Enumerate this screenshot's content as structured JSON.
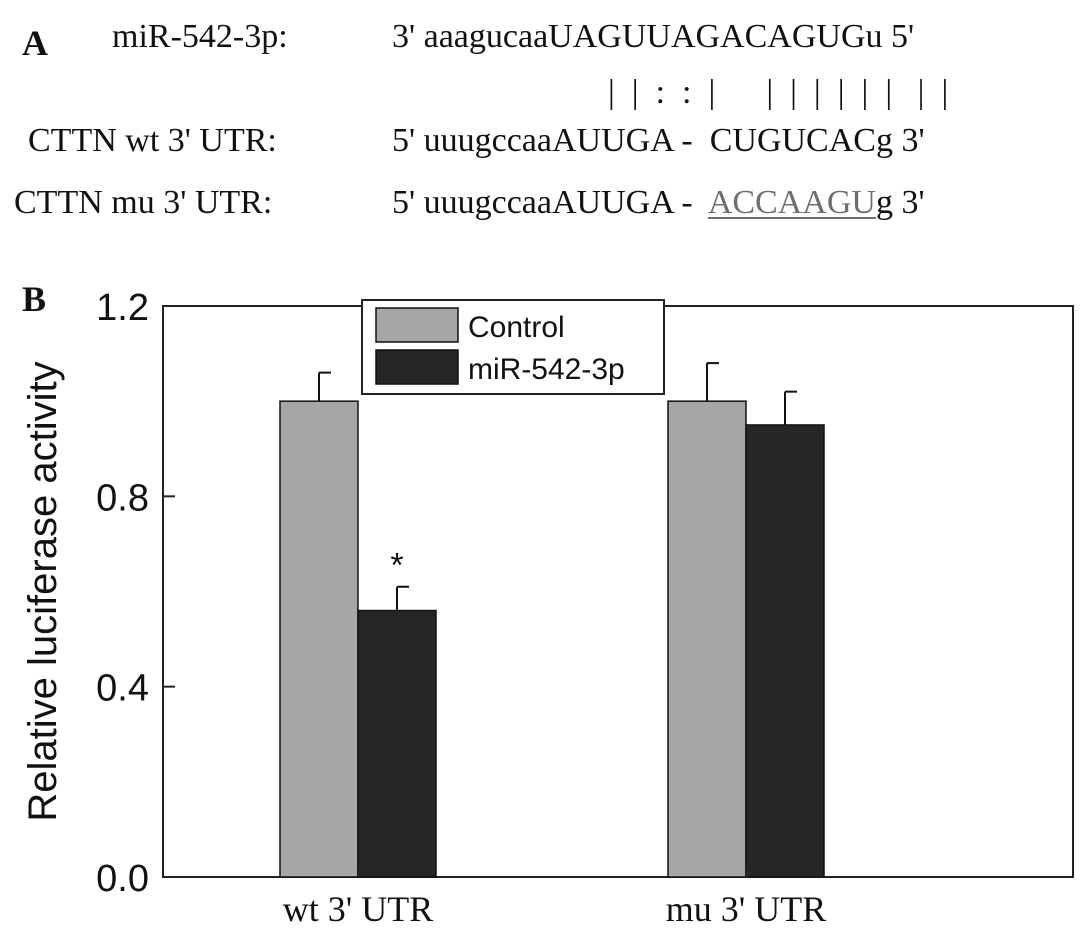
{
  "panel_a": {
    "letter": "A",
    "mir_label": "miR-542-3p:",
    "mir_seq": {
      "prefix": "3' aaagucaa",
      "core": "UAGUUAGACAGUG",
      "suffix": "u 5'"
    },
    "pairing": "|  |  :  :  |      |  |  |  |  |  |   |  |",
    "wt_label": "CTTN wt 3' UTR:",
    "wt_seq": {
      "prefix": "5' uuugccaa",
      "core": "AUUGA -  CUGUCAC",
      "suffix": "g 3'"
    },
    "mu_label": "CTTN mu 3' UTR:",
    "mu_seq": {
      "prefix": "5' uuugccaaAUUGA -  ",
      "mutated": "ACCAAGU",
      "suffix": "g 3'"
    }
  },
  "panel_b": {
    "letter": "B",
    "significance_mark": "*"
  },
  "chart_data": {
    "type": "bar",
    "categories": [
      "wt 3' UTR",
      "mu 3' UTR"
    ],
    "series": [
      {
        "name": "Control",
        "values": [
          1.0,
          1.0
        ],
        "errors": [
          0.06,
          0.08
        ],
        "color": "#a6a6a6"
      },
      {
        "name": "miR-542-3p",
        "values": [
          0.56,
          0.95
        ],
        "errors": [
          0.05,
          0.07
        ],
        "color": "#262626"
      }
    ],
    "ylabel": "Relative luciferase activity",
    "xlabel": "",
    "ylim": [
      0.0,
      1.2
    ],
    "yticks": [
      "0.0",
      "0.4",
      "0.8",
      "1.2"
    ],
    "ytick_values": [
      0.0,
      0.4,
      0.8,
      1.2
    ],
    "legend_position": "top-center",
    "grid": false,
    "annotations": [
      {
        "category_index": 0,
        "series_index": 1,
        "text": "*"
      }
    ]
  }
}
